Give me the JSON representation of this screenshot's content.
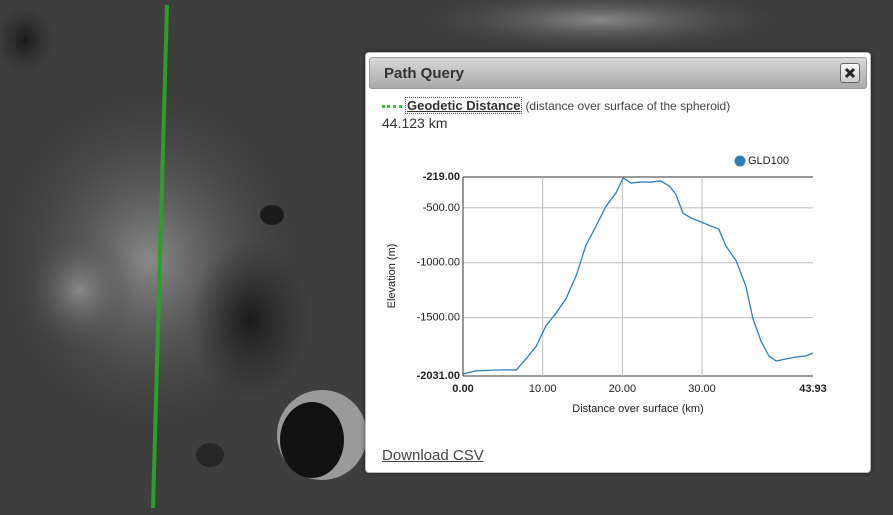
{
  "panel": {
    "title": "Path Query",
    "measure_label": "Geodetic Distance",
    "measure_note": "(distance over surface of the spheroid)",
    "distance": "44.123 km",
    "download": "Download CSV"
  },
  "chart_data": {
    "type": "line",
    "x_label": "Distance over surface (km)",
    "y_label": "Elevation (m)",
    "x": [
      0,
      1.6,
      4.8,
      6.7,
      7.9,
      9.2,
      10.4,
      11.7,
      12.9,
      14.2,
      15.4,
      16.7,
      17.9,
      19.2,
      20.1,
      21.1,
      22.3,
      23.6,
      24.8,
      25.9,
      26.7,
      27.6,
      28.6,
      29.9,
      31.1,
      32.1,
      33.0,
      34.3,
      35.5,
      36.4,
      37.4,
      38.4,
      39.3,
      40.5,
      41.8,
      43.0,
      43.93
    ],
    "series": [
      {
        "name": "GLD100",
        "color": "#2e7fb5",
        "values": [
          -2013,
          -1984,
          -1975,
          -1976,
          -1876,
          -1758,
          -1576,
          -1457,
          -1330,
          -1120,
          -847,
          -665,
          -492,
          -365,
          -228,
          -274,
          -265,
          -265,
          -255,
          -301,
          -374,
          -547,
          -592,
          -629,
          -665,
          -692,
          -847,
          -984,
          -1212,
          -1512,
          -1712,
          -1849,
          -1895,
          -1876,
          -1858,
          -1849,
          -1822
        ]
      }
    ],
    "xlim": [
      0,
      43.93
    ],
    "ylim": [
      -2031,
      -219
    ],
    "xticks": [
      {
        "value": 0,
        "label": "0.00"
      },
      {
        "value": 10,
        "label": "10.00"
      },
      {
        "value": 20,
        "label": "20.00"
      },
      {
        "value": 30,
        "label": "30.00"
      },
      {
        "value": 43.93,
        "label": "43.93"
      }
    ],
    "yticks": [
      {
        "value": -219,
        "label": "-219.00"
      },
      {
        "value": -500,
        "label": "-500.00"
      },
      {
        "value": -1000,
        "label": "-1000.00"
      },
      {
        "value": -1500,
        "label": "-1500.00"
      },
      {
        "value": -2031,
        "label": "-2031.00"
      }
    ],
    "grid": true
  }
}
